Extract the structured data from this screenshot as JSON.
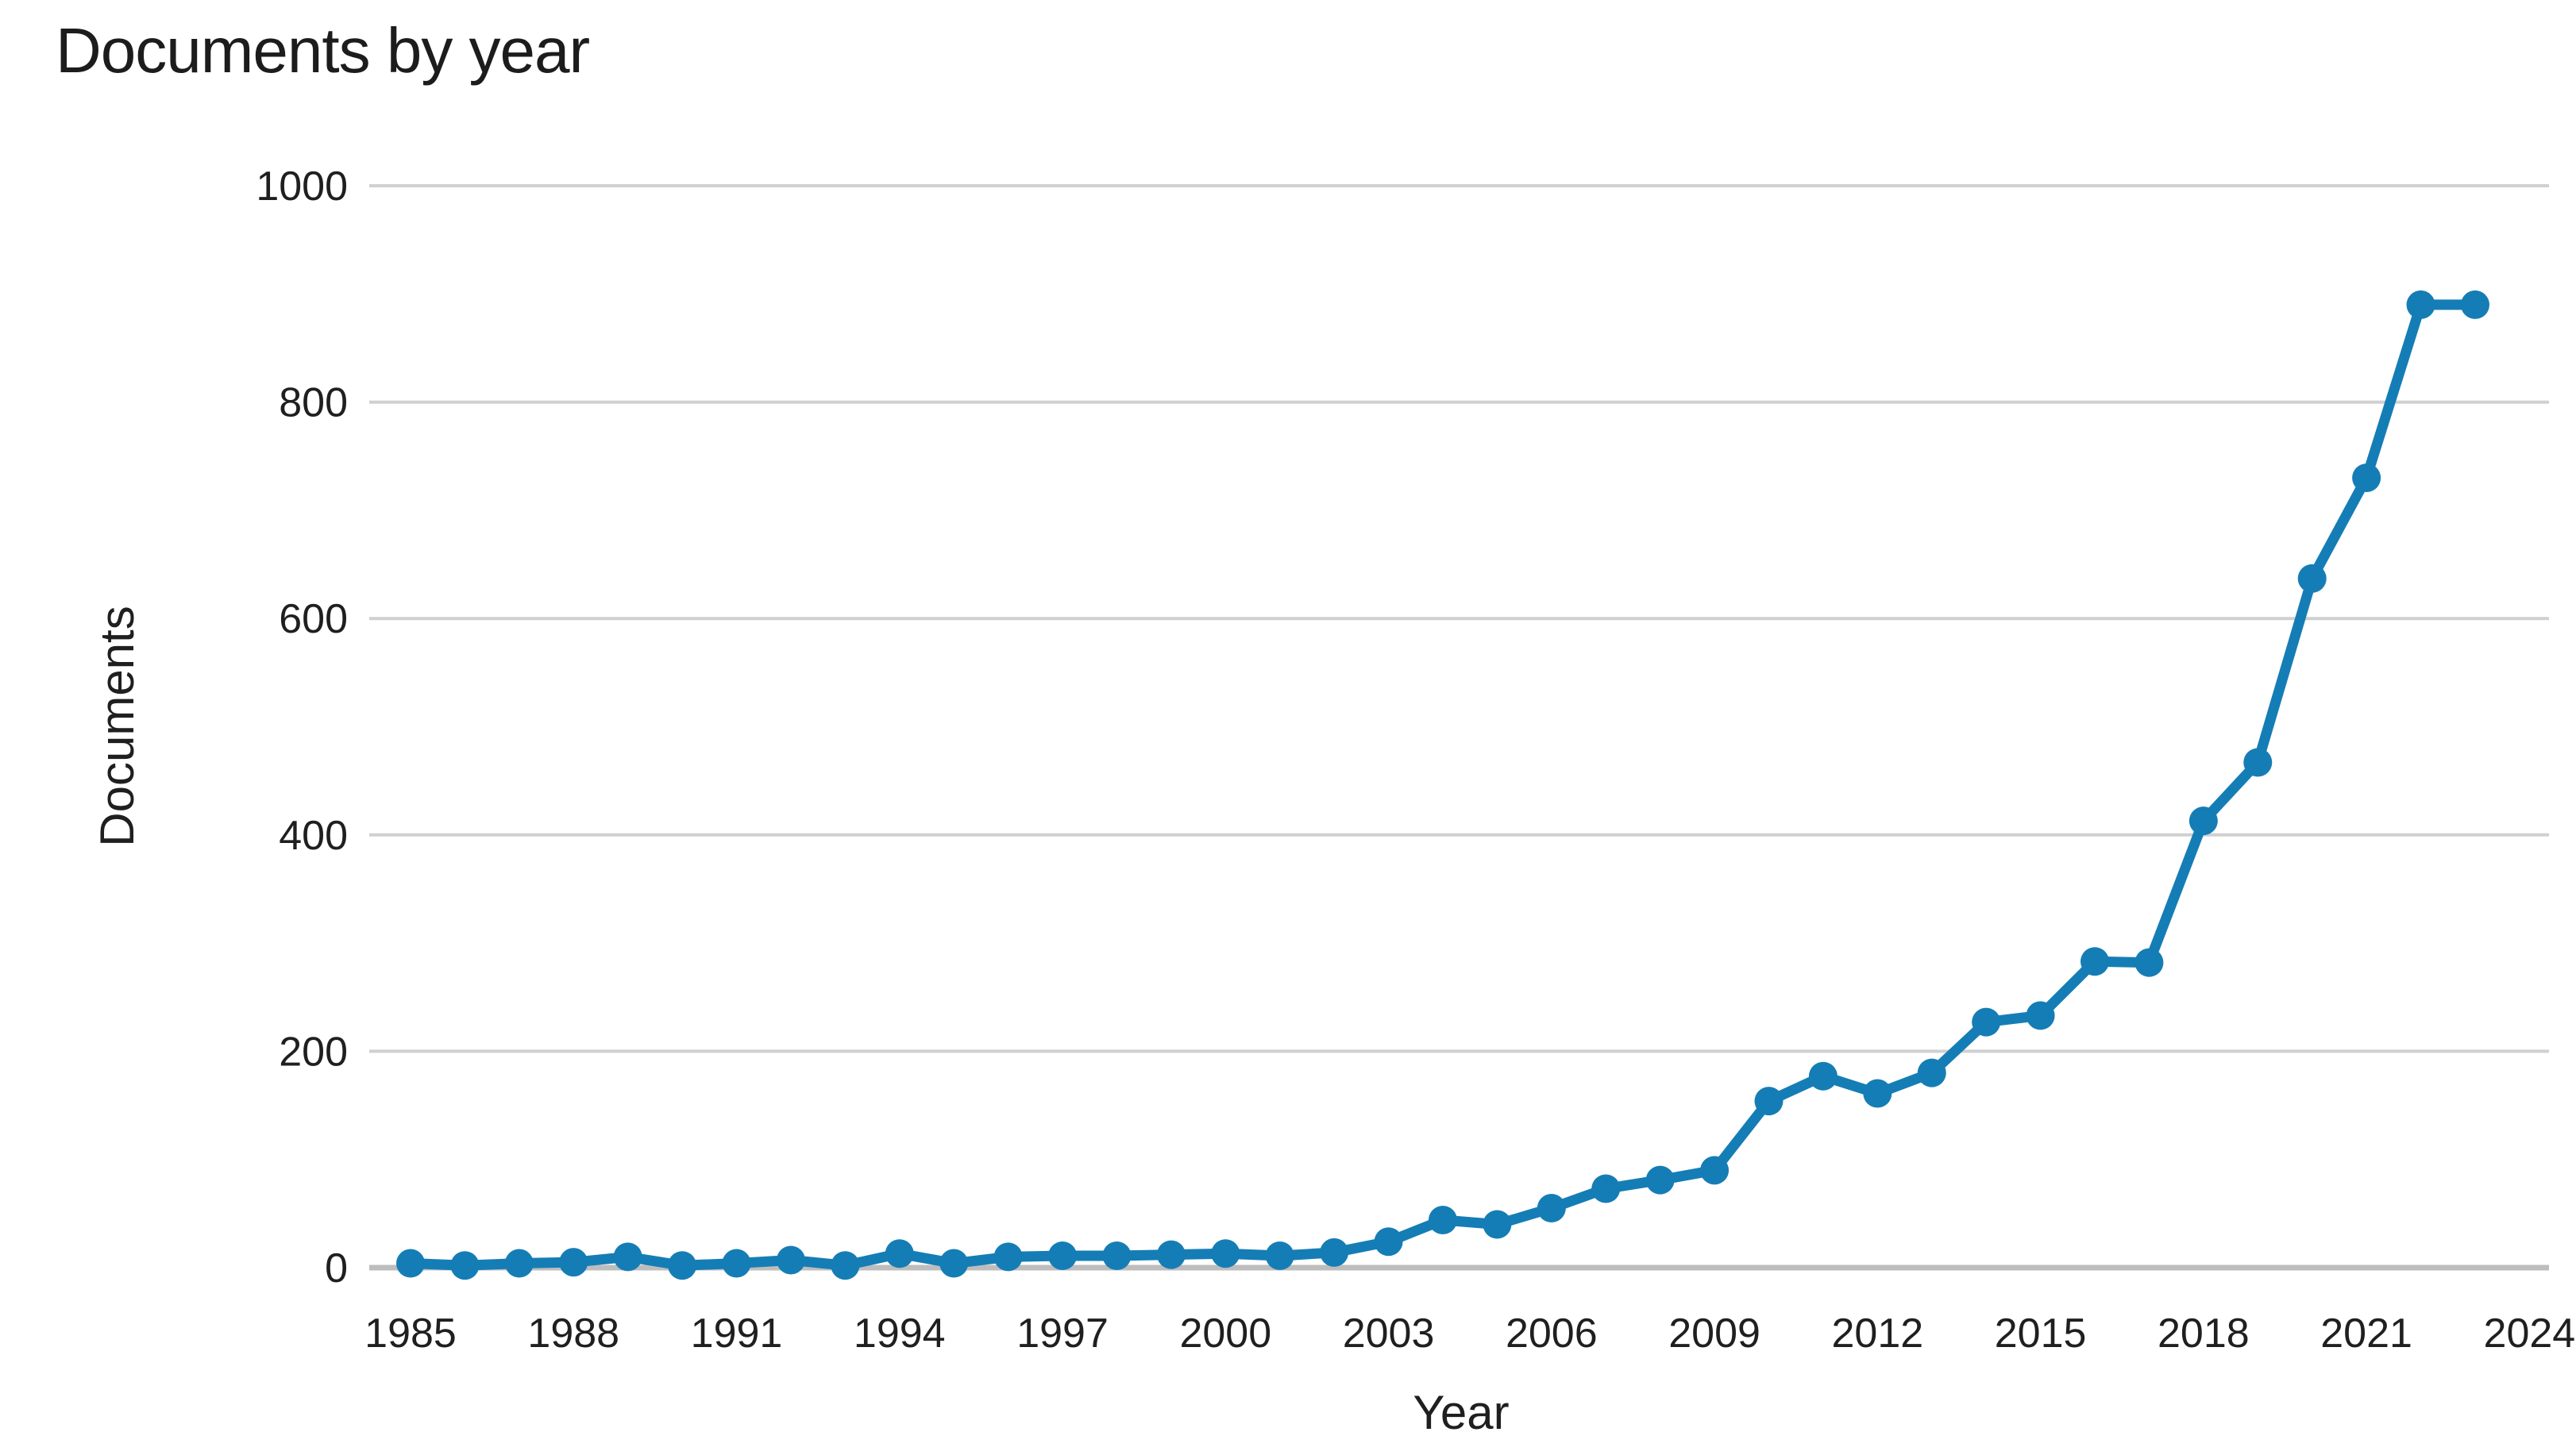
{
  "chart": {
    "title": "Documents by year",
    "xlabel": "Year",
    "ylabel": "Documents"
  },
  "chart_data": {
    "type": "line",
    "title": "Documents by year",
    "xlabel": "Year",
    "ylabel": "Documents",
    "x": [
      1985,
      1986,
      1987,
      1988,
      1989,
      1990,
      1991,
      1992,
      1993,
      1994,
      1995,
      1996,
      1997,
      1998,
      1999,
      2000,
      2001,
      2002,
      2003,
      2004,
      2005,
      2006,
      2007,
      2008,
      2009,
      2010,
      2011,
      2012,
      2013,
      2014,
      2015,
      2016,
      2017,
      2018,
      2019,
      2020,
      2021,
      2022,
      2023
    ],
    "values": [
      4,
      2,
      4,
      5,
      10,
      2,
      4,
      7,
      2,
      13,
      4,
      10,
      11,
      11,
      12,
      13,
      11,
      14,
      24,
      44,
      40,
      55,
      73,
      81,
      90,
      154,
      177,
      161,
      180,
      227,
      233,
      283,
      282,
      413,
      467,
      637,
      730,
      890,
      890
    ],
    "x_tick_labels": [
      "1985",
      "1988",
      "1991",
      "1994",
      "1997",
      "2000",
      "2003",
      "2006",
      "2009",
      "2012",
      "2015",
      "2018",
      "2021",
      "2024"
    ],
    "y_ticks": [
      0,
      200,
      400,
      600,
      800,
      1000
    ],
    "ylim": [
      0,
      1000
    ],
    "xlim": [
      1985,
      2024
    ],
    "grid": "horizontal",
    "legend": "none",
    "line_color": "#157db5",
    "marker": "circle",
    "gridline_color": "#d0d0d0",
    "baseline_color": "#bdbdbd",
    "text_color": "#1f1f1f",
    "background": "#ffffff"
  }
}
